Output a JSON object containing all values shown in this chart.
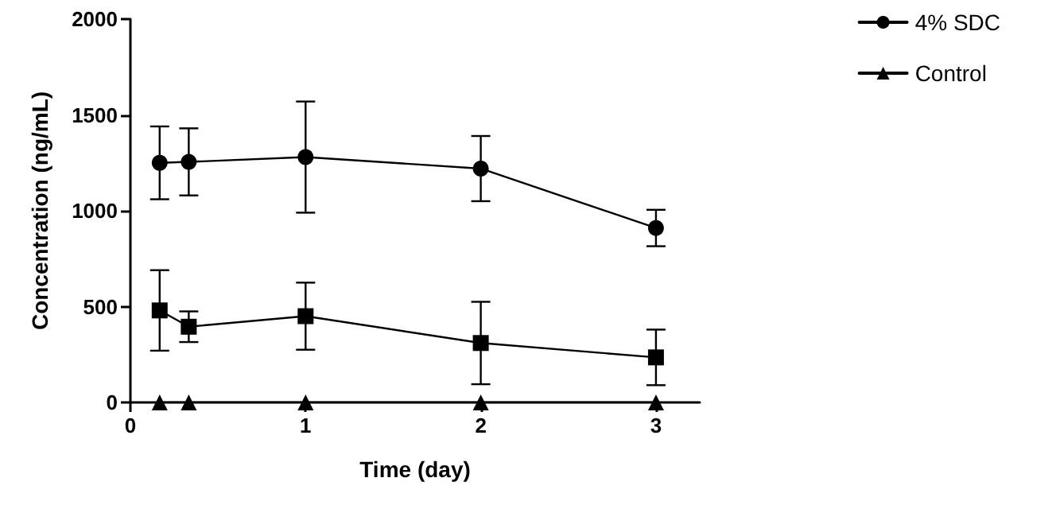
{
  "chart_data": {
    "type": "line",
    "xlabel": "Time (day)",
    "ylabel": "Concentration (ng/mL)",
    "xlim": [
      0,
      3.25
    ],
    "xticks": [
      0,
      1,
      2,
      3
    ],
    "ylim": [
      0,
      2000
    ],
    "yticks": [
      0,
      500,
      1000,
      1500,
      2000
    ],
    "grid": false,
    "legend": "top right",
    "line_style": "solid",
    "series": [
      {
        "name": "4% SDC",
        "color": "#000000",
        "marker": "circle",
        "x": [
          0.167,
          0.333,
          1,
          2,
          3
        ],
        "values": [
          1250,
          1255,
          1280,
          1220,
          910
        ],
        "errors": [
          190,
          175,
          290,
          170,
          95
        ]
      },
      {
        "color": "#000000",
        "marker": "square",
        "x": [
          0.167,
          0.333,
          1,
          2,
          3
        ],
        "values": [
          480,
          395,
          450,
          310,
          235
        ],
        "errors": [
          210,
          80,
          175,
          215,
          145
        ]
      },
      {
        "name": "Control",
        "color": "#000000",
        "marker": "triangle",
        "x": [
          0.167,
          0.333,
          1,
          2,
          3
        ],
        "values": [
          0,
          0,
          0,
          0,
          0
        ]
      }
    ]
  }
}
